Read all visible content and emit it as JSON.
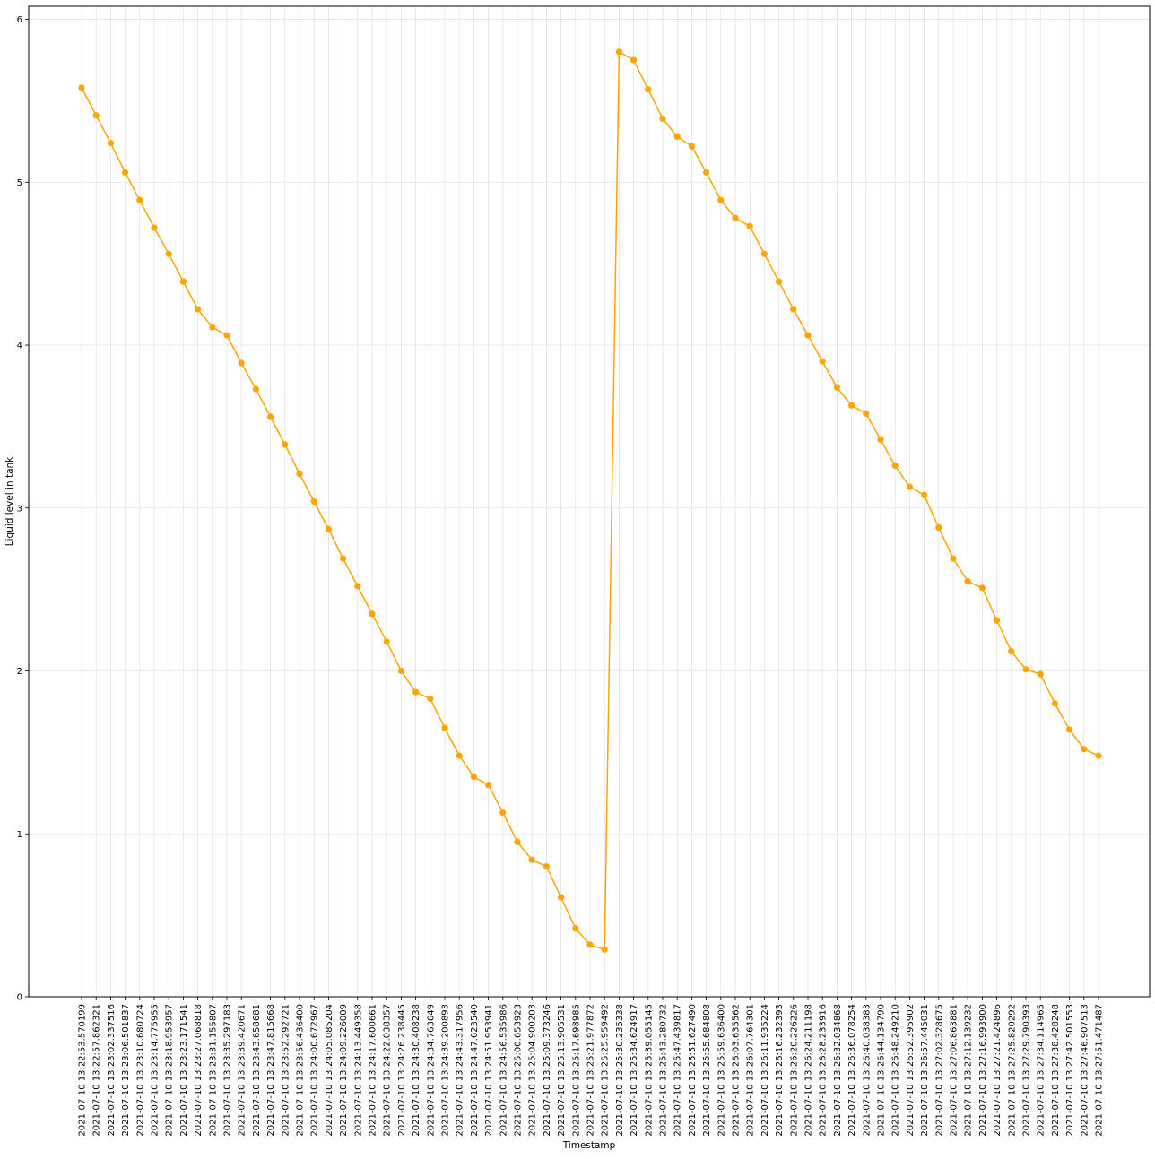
{
  "chart_data": {
    "type": "line",
    "xlabel": "Timestamp",
    "ylabel": "Liquid level in tank",
    "ylim": [
      0,
      6.08
    ],
    "yticks": [
      0,
      1,
      2,
      3,
      4,
      5,
      6
    ],
    "grid": true,
    "line_color": "#ffa500",
    "marker": "circle",
    "series": [
      {
        "x": [
          "2021-07-10 13:22:53.570199",
          "2021-07-10 13:22:57.862321",
          "2021-07-10 13:23:02.337516",
          "2021-07-10 13:23:06.501837",
          "2021-07-10 13:23:10.680724",
          "2021-07-10 13:23:14.775955",
          "2021-07-10 13:23:18.953957",
          "2021-07-10 13:23:23.171541",
          "2021-07-10 13:23:27.068818",
          "2021-07-10 13:23:31.155807",
          "2021-07-10 13:23:35.297183",
          "2021-07-10 13:23:39.420671",
          "2021-07-10 13:23:43.658681",
          "2021-07-10 13:23:47.815668",
          "2021-07-10 13:23:52.292721",
          "2021-07-10 13:23:56.436400",
          "2021-07-10 13:24:00.672967",
          "2021-07-10 13:24:05.085204",
          "2021-07-10 13:24:09.226009",
          "2021-07-10 13:24:13.449358",
          "2021-07-10 13:24:17.600661",
          "2021-07-10 13:24:22.038357",
          "2021-07-10 13:24:26.238445",
          "2021-07-10 13:24:30.408238",
          "2021-07-10 13:24:34.763649",
          "2021-07-10 13:24:39.200893",
          "2021-07-10 13:24:43.317956",
          "2021-07-10 13:24:47.623540",
          "2021-07-10 13:24:51.953941",
          "2021-07-10 13:24:56.535986",
          "2021-07-10 13:25:00.653923",
          "2021-07-10 13:25:04.900203",
          "2021-07-10 13:25:09.373246",
          "2021-07-10 13:25:13.905531",
          "2021-07-10 13:25:17.698985",
          "2021-07-10 13:25:21.977872",
          "2021-07-10 13:25:25.959492",
          "2021-07-10 13:25:30.235338",
          "2021-07-10 13:25:34.624917",
          "2021-07-10 13:25:39.055145",
          "2021-07-10 13:25:43.280732",
          "2021-07-10 13:25:47.439817",
          "2021-07-10 13:25:51.627490",
          "2021-07-10 13:25:55.684808",
          "2021-07-10 13:25:59.636400",
          "2021-07-10 13:26:03.635562",
          "2021-07-10 13:26:07.764301",
          "2021-07-10 13:26:11.935224",
          "2021-07-10 13:26:16.232393",
          "2021-07-10 13:26:20.226226",
          "2021-07-10 13:26:24.211198",
          "2021-07-10 13:26:28.233916",
          "2021-07-10 13:26:32.034868",
          "2021-07-10 13:26:36.078254",
          "2021-07-10 13:26:40.038383",
          "2021-07-10 13:26:44.134790",
          "2021-07-10 13:26:48.249210",
          "2021-07-10 13:26:52.395902",
          "2021-07-10 13:26:57.445031",
          "2021-07-10 13:27:02.328675",
          "2021-07-10 13:27:06.863881",
          "2021-07-10 13:27:12.139232",
          "2021-07-10 13:27:16.993900",
          "2021-07-10 13:27:21.424896",
          "2021-07-10 13:27:25.820292",
          "2021-07-10 13:27:29.790393",
          "2021-07-10 13:27:34.114965",
          "2021-07-10 13:27:38.428248",
          "2021-07-10 13:27:42.501553",
          "2021-07-10 13:27:46.907513",
          "2021-07-10 13:27:51.471487"
        ],
        "y": [
          5.58,
          5.41,
          5.24,
          5.06,
          4.89,
          4.72,
          4.56,
          4.39,
          4.22,
          4.11,
          4.06,
          3.89,
          3.73,
          3.56,
          3.39,
          3.21,
          3.04,
          2.87,
          2.69,
          2.52,
          2.35,
          2.18,
          2.0,
          1.87,
          1.83,
          1.65,
          1.48,
          1.35,
          1.3,
          1.13,
          0.95,
          0.84,
          0.8,
          0.61,
          0.42,
          0.32,
          0.29,
          5.8,
          5.75,
          5.57,
          5.39,
          5.28,
          5.22,
          5.06,
          4.89,
          4.78,
          4.73,
          4.56,
          4.39,
          4.22,
          4.06,
          3.9,
          3.74,
          3.63,
          3.58,
          3.42,
          3.26,
          3.13,
          3.08,
          2.88,
          2.69,
          2.55,
          2.51,
          2.31,
          2.12,
          2.01,
          1.98,
          1.8,
          1.64,
          1.52,
          1.48
        ]
      }
    ]
  }
}
